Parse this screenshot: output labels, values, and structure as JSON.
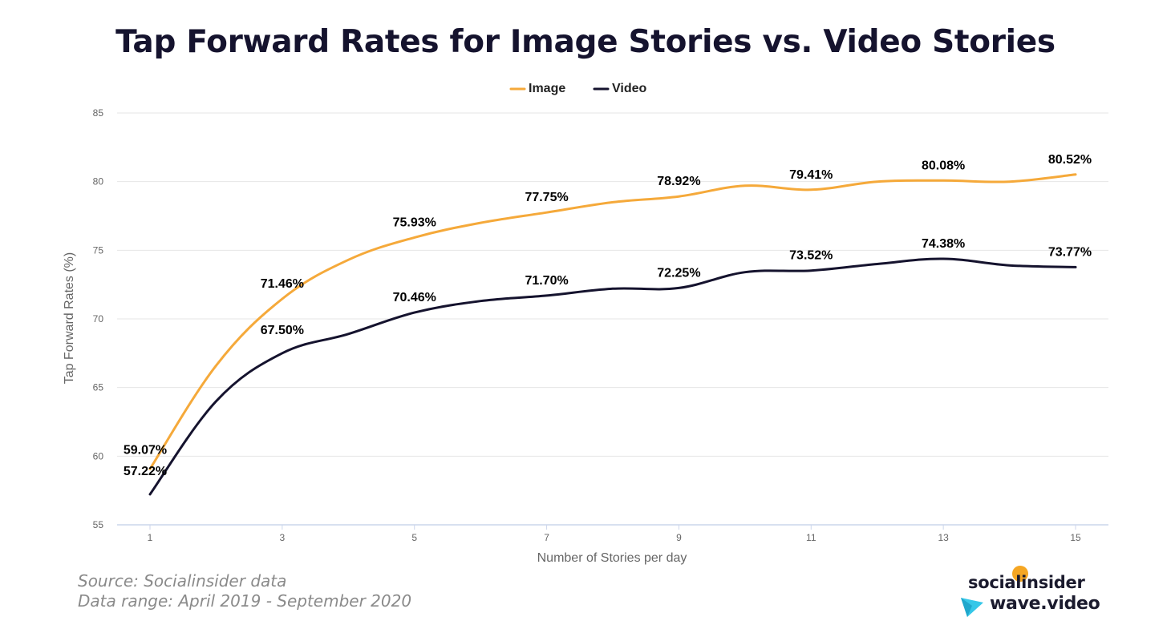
{
  "title": "Tap Forward Rates for Image Stories vs. Video Stories",
  "source": "Source: Socialinsider data",
  "data_range": "Data range: April 2019 - September 2020",
  "logos": {
    "socialinsider": "socialinsider",
    "wave": "wave.video"
  },
  "colors": {
    "image": "#f5a93a",
    "video": "#15132e",
    "grid": "#e6e6e6",
    "axis_line": "#ccd6eb"
  },
  "chart_data": {
    "type": "line",
    "title": "Tap Forward Rates for Image Stories vs. Video Stories",
    "xlabel": "Number of Stories per day",
    "ylabel": "Tap Forward Rates (%)",
    "xlim": [
      1,
      15
    ],
    "ylim": [
      55,
      85
    ],
    "yticks": [
      55,
      60,
      65,
      70,
      75,
      80,
      85
    ],
    "xticks": [
      1,
      3,
      5,
      7,
      9,
      11,
      13,
      15
    ],
    "grid": true,
    "legend_position": "top-center",
    "series": [
      {
        "name": "Image",
        "color": "#f5a93a",
        "x": [
          1,
          2,
          3,
          4,
          5,
          6,
          7,
          8,
          9,
          10,
          11,
          12,
          13,
          14,
          15
        ],
        "y": [
          59.07,
          66.6,
          71.46,
          74.3,
          75.93,
          77.0,
          77.75,
          78.5,
          78.92,
          79.7,
          79.41,
          80.0,
          80.08,
          80.0,
          80.52
        ],
        "labels": [
          {
            "x": 1,
            "y": 59.07,
            "text": "59.07%"
          },
          {
            "x": 3,
            "y": 71.46,
            "text": "71.46%"
          },
          {
            "x": 5,
            "y": 75.93,
            "text": "75.93%"
          },
          {
            "x": 7,
            "y": 77.75,
            "text": "77.75%"
          },
          {
            "x": 9,
            "y": 78.92,
            "text": "78.92%"
          },
          {
            "x": 11,
            "y": 79.41,
            "text": "79.41%"
          },
          {
            "x": 13,
            "y": 80.08,
            "text": "80.08%"
          },
          {
            "x": 15,
            "y": 80.52,
            "text": "80.52%"
          }
        ]
      },
      {
        "name": "Video",
        "color": "#15132e",
        "x": [
          1,
          2,
          3,
          4,
          5,
          6,
          7,
          8,
          9,
          10,
          11,
          12,
          13,
          14,
          15
        ],
        "y": [
          57.22,
          64.0,
          67.5,
          68.9,
          70.46,
          71.3,
          71.7,
          72.2,
          72.25,
          73.4,
          73.52,
          74.0,
          74.38,
          73.9,
          73.77
        ],
        "labels": [
          {
            "x": 1,
            "y": 57.22,
            "text": "57.22%"
          },
          {
            "x": 3,
            "y": 67.5,
            "text": "67.50%"
          },
          {
            "x": 5,
            "y": 70.46,
            "text": "70.46%"
          },
          {
            "x": 7,
            "y": 71.7,
            "text": "71.70%"
          },
          {
            "x": 9,
            "y": 72.25,
            "text": "72.25%"
          },
          {
            "x": 11,
            "y": 73.52,
            "text": "73.52%"
          },
          {
            "x": 13,
            "y": 74.38,
            "text": "74.38%"
          },
          {
            "x": 15,
            "y": 73.77,
            "text": "73.77%"
          }
        ]
      }
    ]
  }
}
